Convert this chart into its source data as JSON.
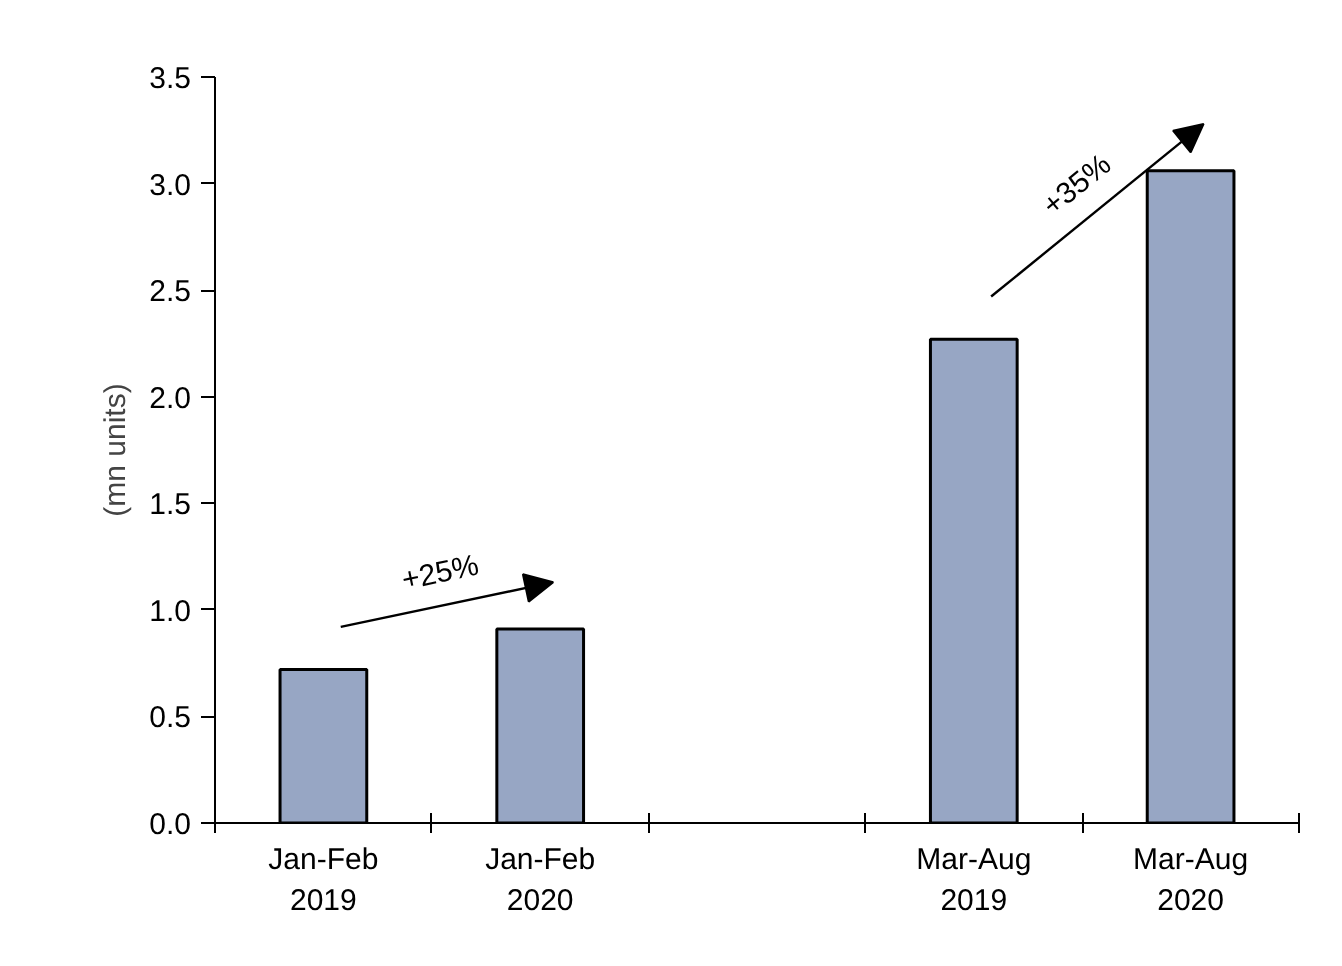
{
  "chart_data": {
    "type": "bar",
    "ylabel": "(mn units)",
    "categories": [
      "Jan-Feb\n2019",
      "Jan-Feb\n2020",
      null,
      "Mar-Aug\n2019",
      "Mar-Aug\n2020"
    ],
    "values": [
      0.72,
      0.91,
      null,
      2.27,
      3.06
    ],
    "color": "#97a6c4",
    "ylim": [
      0,
      3.5
    ],
    "yticks": [
      {
        "value": 0,
        "label": "0.0"
      },
      {
        "value": 0.5,
        "label": "0.5"
      },
      {
        "value": 1,
        "label": "1.0"
      },
      {
        "value": 1.5,
        "label": "1.5"
      },
      {
        "value": 2,
        "label": "2.0"
      },
      {
        "value": 2.5,
        "label": "2.5"
      },
      {
        "value": 3,
        "label": "3.0"
      },
      {
        "value": 3.5,
        "label": "3.5"
      }
    ],
    "grid": false,
    "annotations": [
      "+25%",
      "+35%"
    ]
  }
}
